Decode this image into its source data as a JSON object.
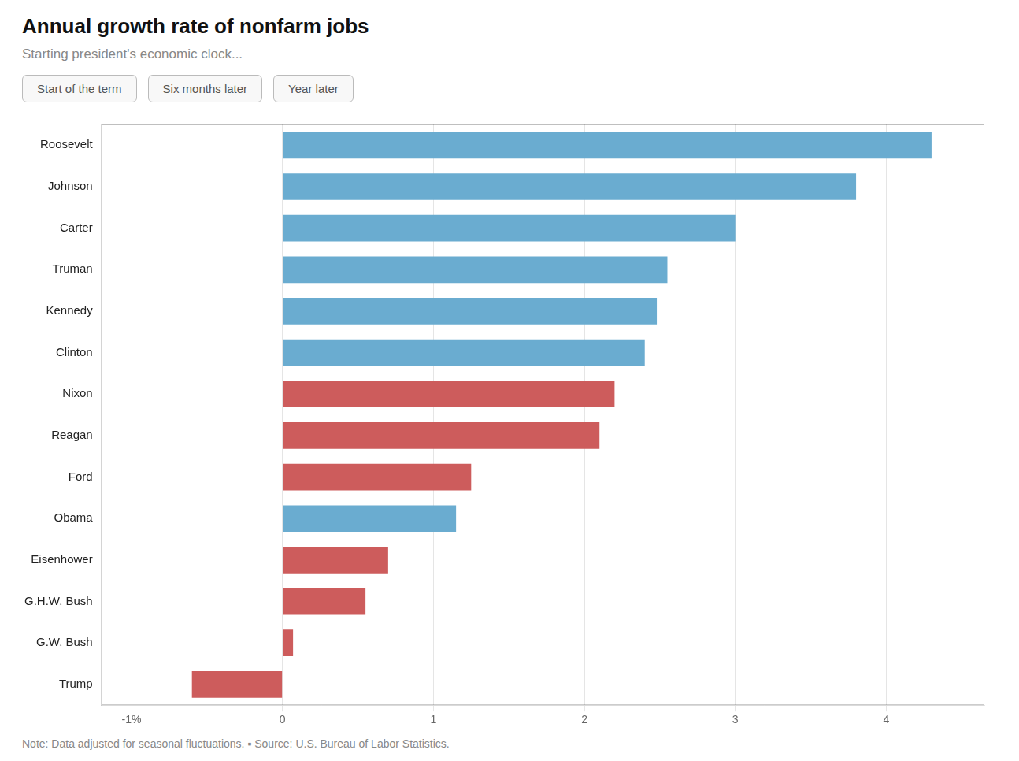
{
  "chart_data": {
    "type": "bar",
    "orientation": "horizontal",
    "title": "Annual growth rate of nonfarm jobs",
    "subtitle": "Starting president's economic clock...",
    "annotations": [
      "Start of the term",
      "Six months later",
      "Year later"
    ],
    "footnote": "Note: Data adjusted for seasonal fluctuations.  ▪  Source: U.S. Bureau of Labor Statistics.",
    "categories": [
      "Roosevelt",
      "Johnson",
      "Carter",
      "Truman",
      "Kennedy",
      "Clinton",
      "Nixon",
      "Reagan",
      "Ford",
      "Obama",
      "Eisenhower",
      "G.H.W. Bush",
      "G.W. Bush",
      "Trump"
    ],
    "values": [
      4.3,
      3.8,
      3.0,
      2.55,
      2.48,
      2.4,
      2.2,
      2.1,
      1.25,
      1.15,
      0.7,
      0.55,
      0.07,
      -0.6
    ],
    "colors": [
      "#6aacd0",
      "#6aacd0",
      "#6aacd0",
      "#6aacd0",
      "#6aacd0",
      "#6aacd0",
      "#cd5c5c",
      "#cd5c5c",
      "#cd5c5c",
      "#6aacd0",
      "#cd5c5c",
      "#cd5c5c",
      "#cd5c5c",
      "#cd5c5c"
    ],
    "xlim": [
      -1.2,
      4.65
    ],
    "xticks": [
      {
        "value": -1,
        "label": "-1%"
      },
      0,
      1,
      2,
      3,
      4
    ],
    "grid": true
  }
}
